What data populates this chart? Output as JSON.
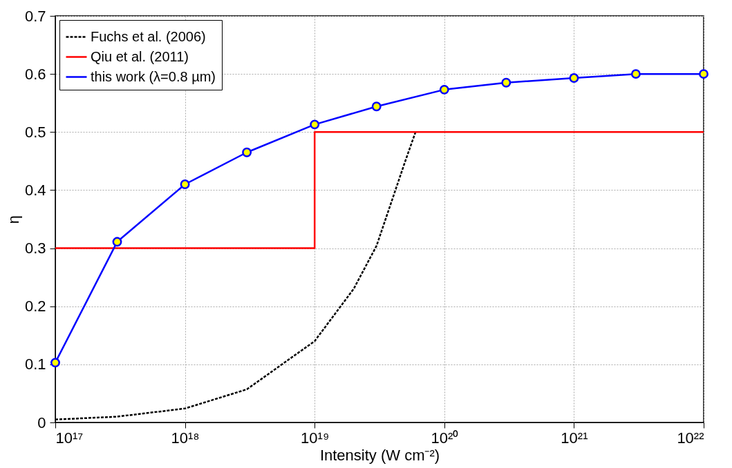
{
  "chart_data": {
    "type": "line",
    "xlabel": "Intensity (W cm⁻²)",
    "ylabel": "η",
    "log": "x",
    "grid": true,
    "legend": "top left",
    "xlim": [
      1e+17,
      1e+22
    ],
    "xticks": [
      {
        "value": 1e+17,
        "label": "10¹⁷"
      },
      {
        "value": 1e+18,
        "label": "10¹⁸"
      },
      {
        "value": 1e+19,
        "label": "10¹⁹"
      },
      {
        "value": 1e+20,
        "label": "10²⁰"
      },
      {
        "value": 1e+21,
        "label": "10²¹"
      },
      {
        "value": 1e+22,
        "label": "10²²"
      }
    ],
    "ylim": [
      0,
      0.7
    ],
    "yticks": [
      0,
      0.1,
      0.2,
      0.3,
      0.4,
      0.5,
      0.6,
      0.7
    ],
    "series": [
      {
        "name": "Fuchs et al. (2006)",
        "type": "line",
        "color": "#000000",
        "line_style": "dashed",
        "marker": "none",
        "x": [
          1e+17,
          3e+17,
          1e+18,
          3e+18,
          1e+19,
          2e+19,
          3e+19,
          5e+19,
          6e+19
        ],
        "values": [
          0.005,
          0.01,
          0.024,
          0.057,
          0.14,
          0.23,
          0.304,
          0.45,
          0.5
        ]
      },
      {
        "name": "Qiu et al. (2011)",
        "type": "step",
        "color": "#ff0000",
        "line_style": "solid",
        "marker": "none",
        "x": [
          1e+17,
          1e+19,
          1e+22
        ],
        "values": [
          0.3,
          0.5,
          0.5
        ]
      },
      {
        "name": "this work (λ=0.8 µm)",
        "type": "line",
        "color": "#0000ff",
        "line_style": "solid",
        "marker": "circle",
        "x": [
          1e+17,
          3e+17,
          1e+18,
          3e+18,
          1e+19,
          3e+19,
          1e+20,
          3e+20,
          1e+21,
          3e+21,
          1e+22
        ],
        "values": [
          0.103,
          0.311,
          0.41,
          0.465,
          0.513,
          0.544,
          0.573,
          0.585,
          0.593,
          0.6,
          0.6
        ]
      }
    ]
  }
}
